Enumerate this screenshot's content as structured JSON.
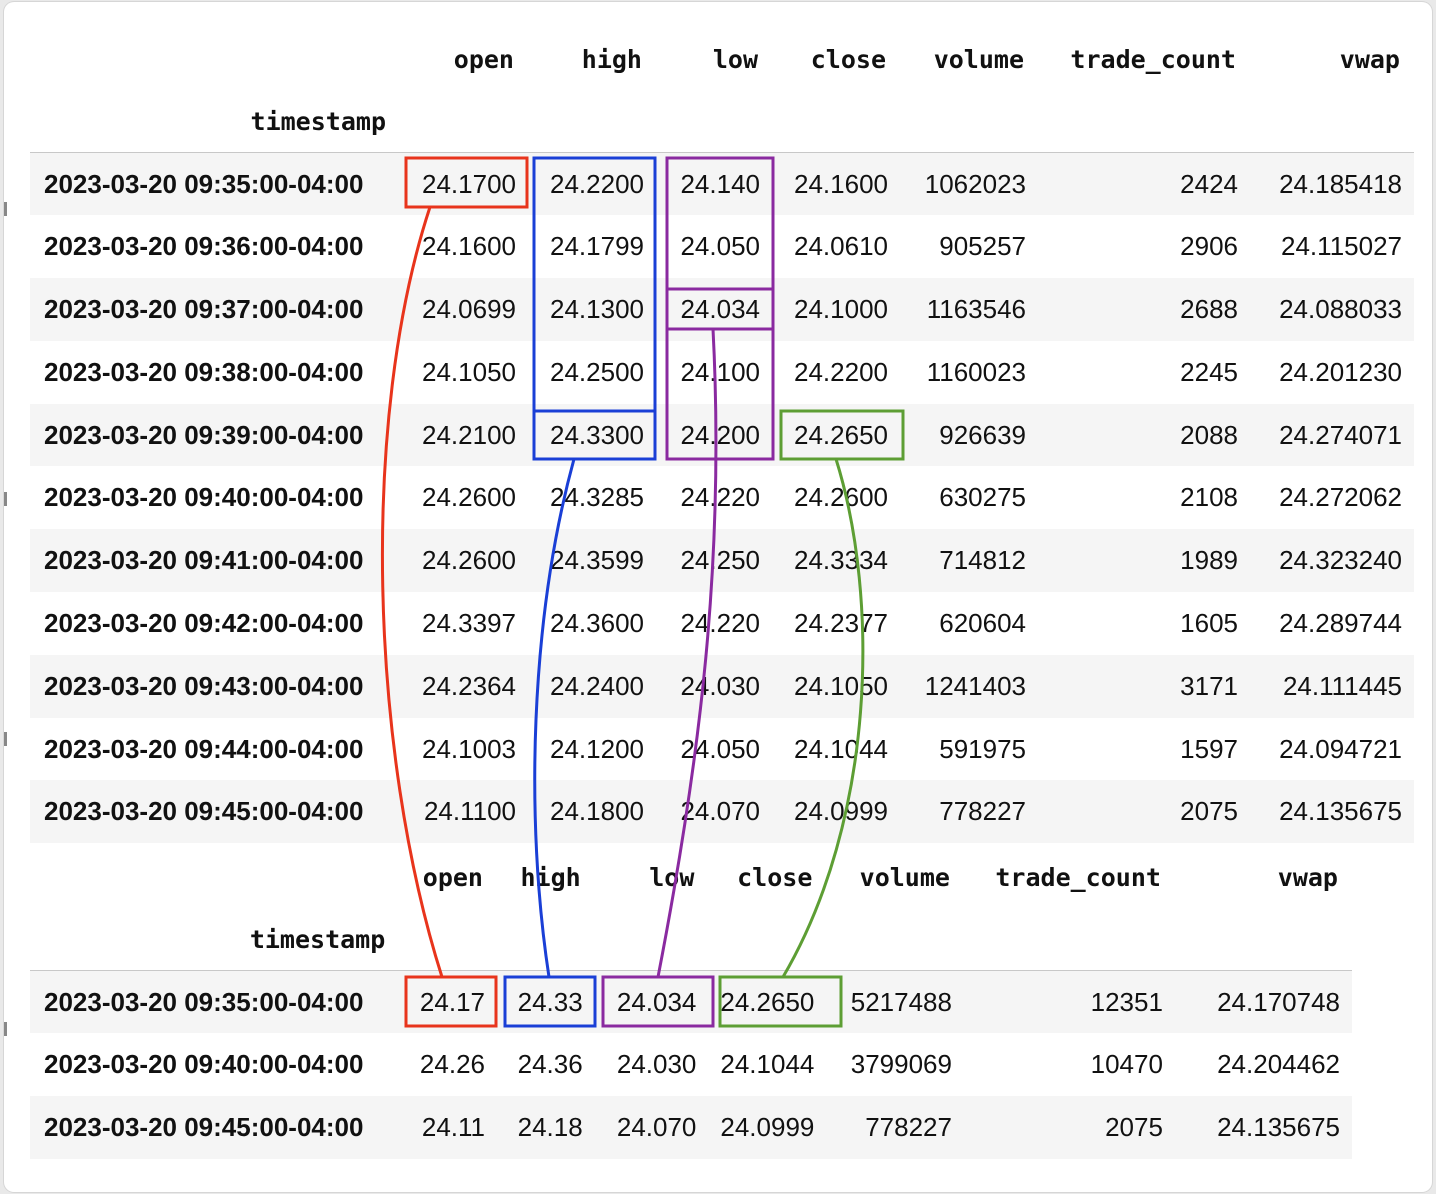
{
  "columns": [
    "open",
    "high",
    "low",
    "close",
    "volume",
    "trade_count",
    "vwap"
  ],
  "index_name": "timestamp",
  "minute_table": {
    "rows": [
      {
        "timestamp": "2023-03-20 09:35:00-04:00",
        "open": "24.1700",
        "high": "24.2200",
        "low": "24.140",
        "close": "24.1600",
        "volume": "1062023",
        "trade_count": "2424",
        "vwap": "24.185418"
      },
      {
        "timestamp": "2023-03-20 09:36:00-04:00",
        "open": "24.1600",
        "high": "24.1799",
        "low": "24.050",
        "close": "24.0610",
        "volume": "905257",
        "trade_count": "2906",
        "vwap": "24.115027"
      },
      {
        "timestamp": "2023-03-20 09:37:00-04:00",
        "open": "24.0699",
        "high": "24.1300",
        "low": "24.034",
        "close": "24.1000",
        "volume": "1163546",
        "trade_count": "2688",
        "vwap": "24.088033"
      },
      {
        "timestamp": "2023-03-20 09:38:00-04:00",
        "open": "24.1050",
        "high": "24.2500",
        "low": "24.100",
        "close": "24.2200",
        "volume": "1160023",
        "trade_count": "2245",
        "vwap": "24.201230"
      },
      {
        "timestamp": "2023-03-20 09:39:00-04:00",
        "open": "24.2100",
        "high": "24.3300",
        "low": "24.200",
        "close": "24.2650",
        "volume": "926639",
        "trade_count": "2088",
        "vwap": "24.274071"
      },
      {
        "timestamp": "2023-03-20 09:40:00-04:00",
        "open": "24.2600",
        "high": "24.3285",
        "low": "24.220",
        "close": "24.2600",
        "volume": "630275",
        "trade_count": "2108",
        "vwap": "24.272062"
      },
      {
        "timestamp": "2023-03-20 09:41:00-04:00",
        "open": "24.2600",
        "high": "24.3599",
        "low": "24.250",
        "close": "24.3334",
        "volume": "714812",
        "trade_count": "1989",
        "vwap": "24.323240"
      },
      {
        "timestamp": "2023-03-20 09:42:00-04:00",
        "open": "24.3397",
        "high": "24.3600",
        "low": "24.220",
        "close": "24.2377",
        "volume": "620604",
        "trade_count": "1605",
        "vwap": "24.289744"
      },
      {
        "timestamp": "2023-03-20 09:43:00-04:00",
        "open": "24.2364",
        "high": "24.2400",
        "low": "24.030",
        "close": "24.1050",
        "volume": "1241403",
        "trade_count": "3171",
        "vwap": "24.111445"
      },
      {
        "timestamp": "2023-03-20 09:44:00-04:00",
        "open": "24.1003",
        "high": "24.1200",
        "low": "24.050",
        "close": "24.1044",
        "volume": "591975",
        "trade_count": "1597",
        "vwap": "24.094721"
      },
      {
        "timestamp": "2023-03-20 09:45:00-04:00",
        "open": "24.1100",
        "high": "24.1800",
        "low": "24.070",
        "close": "24.0999",
        "volume": "778227",
        "trade_count": "2075",
        "vwap": "24.135675"
      }
    ]
  },
  "resampled_table": {
    "rows": [
      {
        "timestamp": "2023-03-20 09:35:00-04:00",
        "open": "24.17",
        "high": "24.33",
        "low": "24.034",
        "close": "24.2650",
        "volume": "5217488",
        "trade_count": "12351",
        "vwap": "24.170748"
      },
      {
        "timestamp": "2023-03-20 09:40:00-04:00",
        "open": "24.26",
        "high": "24.36",
        "low": "24.030",
        "close": "24.1044",
        "volume": "3799069",
        "trade_count": "10470",
        "vwap": "24.204462"
      },
      {
        "timestamp": "2023-03-20 09:45:00-04:00",
        "open": "24.11",
        "high": "24.18",
        "low": "24.070",
        "close": "24.0999",
        "volume": "778227",
        "trade_count": "2075",
        "vwap": "24.135675"
      }
    ]
  },
  "annotation_colors": {
    "open": "#e8341c",
    "high": "#1a3fd6",
    "low": "#8a2aa0",
    "close": "#5d9e34"
  }
}
